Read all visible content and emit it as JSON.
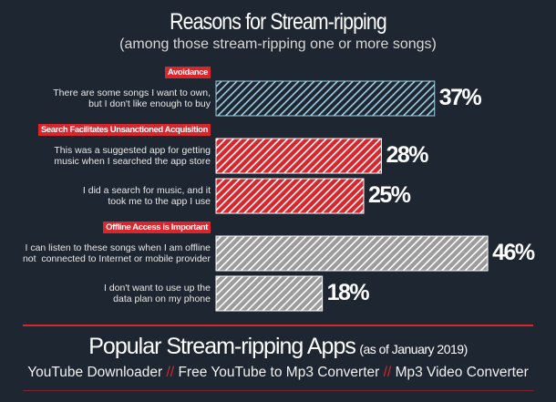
{
  "chart_data": {
    "type": "bar",
    "title": "Reasons for Stream-ripping",
    "subtitle": "(among those stream-ripping one or more songs)",
    "groups": [
      {
        "name": "Avoidance",
        "color": "#1e2631",
        "stripe_color": "#9fd0e3",
        "categories": [
          "There are some songs I want to own,\nbut I don't like enough to buy"
        ],
        "values": [
          37
        ],
        "value_labels": [
          "37%"
        ]
      },
      {
        "name": "Search Facilitates Unsanctioned Acquisition",
        "color": "#d8262c",
        "stripe_color": "#ffffff",
        "categories": [
          "This was a suggested app for getting\nmusic when I searched the app store",
          "I did a search for music, and it\ntook me to the app I use"
        ],
        "values": [
          28,
          25
        ],
        "value_labels": [
          "28%",
          "25%"
        ]
      },
      {
        "name": "Offline Access is Important",
        "color": "#9c9c9c",
        "stripe_color": "#ffffff",
        "categories": [
          "I can listen to these songs when I am offline\nnot  connected to Internet or mobile provider",
          "I don't want to use up the\ndata plan on my phone"
        ],
        "values": [
          46,
          18
        ],
        "value_labels": [
          "46%",
          "18%"
        ]
      }
    ],
    "apps_title": "Popular Stream-ripping Apps",
    "apps_note": "(as of January 2019)",
    "apps": [
      "YouTube Downloader",
      "Free YouTube to Mp3 Converter",
      "Mp3 Video Converter"
    ],
    "separator": "//"
  }
}
